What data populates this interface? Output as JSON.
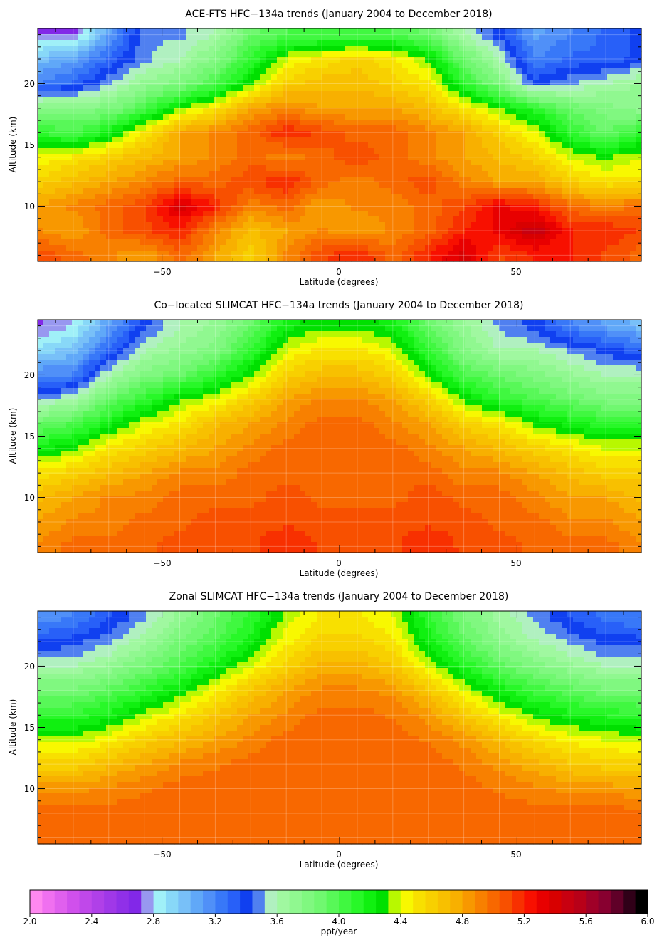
{
  "panels": [
    {
      "title": "ACE-FTS HFC−134a trends (January 2004 to December 2018)",
      "xlabel": "Latitude (degrees)",
      "ylabel": "Altitude (km)",
      "xticks": [
        "−50",
        "0",
        "50"
      ],
      "yticks": [
        "20",
        "15",
        "10"
      ]
    },
    {
      "title": "Co−located SLIMCAT HFC−134a trends (January 2004 to December 2018)",
      "xlabel": "Latitude (degrees)",
      "ylabel": "Altitude (km)",
      "xticks": [
        "−50",
        "0",
        "50"
      ],
      "yticks": [
        "20",
        "15",
        "10"
      ]
    },
    {
      "title": "Zonal SLIMCAT HFC−134a trends (January 2004 to December 2018)",
      "xlabel": "Latitude (degrees)",
      "ylabel": "Altitude (km)",
      "xticks": [
        "−50",
        "0",
        "50"
      ],
      "yticks": [
        "20",
        "15",
        "10"
      ]
    }
  ],
  "colorbar": {
    "label": "ppt/year",
    "ticks": [
      "2.0",
      "2.4",
      "2.8",
      "3.2",
      "3.6",
      "4.0",
      "4.4",
      "4.8",
      "5.2",
      "5.6",
      "6.0"
    ],
    "range": [
      2.0,
      6.0
    ],
    "levels": 50,
    "palette": [
      "#ff88f0",
      "#f070f0",
      "#e060ee",
      "#d050ec",
      "#c048ea",
      "#b040e8",
      "#a038e8",
      "#9030e8",
      "#8228e8",
      "#9898f0",
      "#a0f0f8",
      "#88d8f8",
      "#78c0f8",
      "#60a8f8",
      "#5090f8",
      "#3878f8",
      "#2860f8",
      "#1040f0",
      "#5080f0",
      "#b0f0c0",
      "#a0f8a0",
      "#90f890",
      "#80f880",
      "#70f870",
      "#58f858",
      "#40f840",
      "#28f828",
      "#10f010",
      "#00e000",
      "#b8f800",
      "#f8f800",
      "#f8e000",
      "#f8d000",
      "#f8c000",
      "#f8b000",
      "#f89800",
      "#f88000",
      "#f86800",
      "#f85000",
      "#f83000",
      "#f81000",
      "#e80000",
      "#d80000",
      "#c80010",
      "#b80018",
      "#a00028",
      "#880030",
      "#600028",
      "#300018",
      "#000000"
    ]
  },
  "chart_data": [
    {
      "type": "heatmap",
      "title": "ACE-FTS HFC−134a trends (January 2004 to December 2018)",
      "xlabel": "Latitude (degrees)",
      "ylabel": "Altitude (km)",
      "xlim": [
        -85,
        85
      ],
      "ylim": [
        5.5,
        24.5
      ],
      "zlabel": "ppt/year",
      "zlim": [
        2.0,
        6.0
      ],
      "lat": [
        -85,
        -75,
        -65,
        -55,
        -45,
        -35,
        -25,
        -15,
        -5,
        5,
        15,
        25,
        35,
        45,
        55,
        65,
        75,
        85
      ],
      "alt": [
        6,
        8,
        10,
        12,
        14,
        16,
        18,
        20,
        22,
        24
      ],
      "z": [
        [
          5.1,
          5.0,
          4.9,
          4.8,
          5.0,
          4.8,
          4.6,
          4.9,
          5.1,
          5.2,
          5.0,
          5.2,
          5.4,
          5.1,
          5.2,
          5.2,
          5.1,
          5.0
        ],
        [
          4.9,
          4.8,
          5.0,
          5.1,
          5.2,
          4.9,
          4.7,
          4.8,
          4.9,
          4.8,
          4.9,
          5.0,
          5.2,
          5.3,
          5.5,
          5.2,
          5.2,
          5.1
        ],
        [
          4.8,
          4.9,
          5.0,
          5.1,
          5.4,
          5.2,
          4.9,
          5.0,
          4.8,
          4.9,
          4.9,
          5.0,
          5.1,
          5.3,
          5.2,
          5.0,
          4.9,
          5.0
        ],
        [
          4.6,
          4.7,
          4.8,
          4.9,
          5.0,
          5.0,
          5.1,
          5.2,
          5.0,
          4.9,
          5.0,
          5.1,
          4.9,
          4.8,
          4.8,
          4.6,
          4.5,
          4.5
        ],
        [
          4.4,
          4.5,
          4.6,
          4.7,
          4.8,
          4.9,
          5.0,
          4.9,
          5.0,
          5.1,
          5.0,
          4.9,
          4.8,
          4.7,
          4.6,
          4.4,
          4.3,
          4.4
        ],
        [
          4.1,
          4.0,
          4.2,
          4.5,
          4.8,
          4.9,
          5.0,
          5.2,
          5.1,
          5.0,
          5.0,
          4.9,
          4.8,
          4.6,
          4.4,
          4.1,
          3.9,
          4.1
        ],
        [
          3.8,
          3.8,
          3.8,
          4.0,
          4.3,
          4.5,
          4.8,
          4.9,
          4.8,
          4.8,
          4.8,
          4.7,
          4.5,
          4.3,
          4.1,
          3.9,
          3.8,
          3.7
        ],
        [
          3.2,
          3.3,
          3.5,
          3.7,
          3.8,
          4.0,
          4.3,
          4.6,
          4.7,
          4.7,
          4.6,
          4.5,
          4.1,
          3.8,
          3.4,
          3.5,
          3.6,
          3.7
        ],
        [
          3.0,
          3.1,
          3.3,
          3.5,
          3.6,
          3.8,
          4.1,
          4.4,
          4.5,
          4.6,
          4.5,
          4.3,
          3.9,
          3.6,
          3.2,
          3.3,
          3.3,
          3.4
        ],
        [
          2.7,
          2.7,
          3.1,
          3.5,
          3.5,
          3.6,
          3.9,
          4.0,
          4.0,
          4.0,
          4.0,
          3.9,
          3.6,
          3.4,
          3.1,
          3.2,
          3.3,
          3.4
        ]
      ]
    },
    {
      "type": "heatmap",
      "title": "Co−located SLIMCAT HFC−134a trends (January 2004 to December 2018)",
      "xlabel": "Latitude (degrees)",
      "ylabel": "Altitude (km)",
      "xlim": [
        -85,
        85
      ],
      "ylim": [
        5.5,
        24.5
      ],
      "zlabel": "ppt/year",
      "zlim": [
        2.0,
        6.0
      ],
      "lat": [
        -85,
        -75,
        -65,
        -55,
        -45,
        -35,
        -25,
        -15,
        -5,
        5,
        15,
        25,
        35,
        45,
        55,
        65,
        75,
        85
      ],
      "alt": [
        6,
        8,
        10,
        12,
        14,
        16,
        18,
        20,
        22,
        24
      ],
      "z": [
        [
          4.9,
          5.0,
          5.0,
          5.0,
          5.1,
          5.1,
          5.1,
          5.2,
          5.1,
          5.1,
          5.1,
          5.2,
          5.1,
          5.1,
          5.0,
          5.0,
          5.0,
          4.9
        ],
        [
          4.8,
          4.9,
          4.9,
          5.0,
          5.0,
          5.1,
          5.1,
          5.1,
          5.1,
          5.1,
          5.1,
          5.1,
          5.1,
          5.0,
          5.0,
          4.9,
          4.9,
          4.8
        ],
        [
          4.7,
          4.8,
          4.9,
          4.9,
          5.0,
          5.0,
          5.0,
          5.1,
          5.0,
          5.0,
          5.0,
          5.1,
          5.0,
          5.0,
          4.9,
          4.8,
          4.8,
          4.7
        ],
        [
          4.5,
          4.6,
          4.7,
          4.8,
          4.9,
          4.9,
          5.0,
          5.0,
          5.0,
          5.0,
          5.0,
          5.0,
          4.9,
          4.9,
          4.8,
          4.7,
          4.6,
          4.6
        ],
        [
          4.2,
          4.3,
          4.5,
          4.6,
          4.7,
          4.8,
          4.9,
          5.0,
          5.0,
          5.0,
          5.0,
          4.9,
          4.8,
          4.7,
          4.6,
          4.5,
          4.4,
          4.4
        ],
        [
          3.9,
          4.0,
          4.2,
          4.4,
          4.5,
          4.7,
          4.8,
          4.9,
          5.0,
          5.0,
          4.9,
          4.8,
          4.6,
          4.5,
          4.3,
          4.2,
          4.1,
          4.1
        ],
        [
          3.5,
          3.6,
          3.9,
          4.1,
          4.3,
          4.4,
          4.6,
          4.8,
          4.9,
          4.9,
          4.8,
          4.6,
          4.3,
          4.1,
          4.0,
          3.9,
          3.8,
          3.8
        ],
        [
          3.2,
          3.2,
          3.6,
          3.8,
          3.9,
          4.1,
          4.3,
          4.6,
          4.7,
          4.7,
          4.6,
          4.3,
          4.0,
          3.9,
          3.8,
          3.7,
          3.6,
          3.6
        ],
        [
          2.9,
          3.0,
          3.3,
          3.6,
          3.7,
          3.8,
          4.1,
          4.4,
          4.5,
          4.5,
          4.4,
          4.1,
          3.8,
          3.6,
          3.6,
          3.5,
          3.4,
          3.3
        ],
        [
          2.7,
          2.8,
          3.1,
          3.4,
          3.6,
          3.7,
          3.9,
          4.2,
          4.3,
          4.3,
          4.2,
          3.9,
          3.7,
          3.5,
          3.4,
          3.2,
          3.1,
          3.0
        ]
      ]
    },
    {
      "type": "heatmap",
      "title": "Zonal SLIMCAT HFC−134a trends (January 2004 to December 2018)",
      "xlabel": "Latitude (degrees)",
      "ylabel": "Altitude (km)",
      "xlim": [
        -85,
        85
      ],
      "ylim": [
        5.5,
        24.5
      ],
      "zlabel": "ppt/year",
      "zlim": [
        2.0,
        6.0
      ],
      "lat": [
        -85,
        -75,
        -65,
        -55,
        -45,
        -35,
        -25,
        -15,
        -5,
        5,
        15,
        25,
        35,
        45,
        55,
        65,
        75,
        85
      ],
      "alt": [
        6,
        8,
        10,
        12,
        14,
        16,
        18,
        20,
        22,
        24
      ],
      "z": [
        [
          5.0,
          5.0,
          5.0,
          5.0,
          5.0,
          5.0,
          5.0,
          5.0,
          5.0,
          5.0,
          5.0,
          5.0,
          5.0,
          5.0,
          5.0,
          5.0,
          5.0,
          5.0
        ],
        [
          5.0,
          5.0,
          5.0,
          5.0,
          5.0,
          5.0,
          5.0,
          5.0,
          5.0,
          5.0,
          5.0,
          5.0,
          5.0,
          5.0,
          5.0,
          5.0,
          5.0,
          5.0
        ],
        [
          4.85,
          4.85,
          4.9,
          4.95,
          5.0,
          5.0,
          5.0,
          5.0,
          5.0,
          5.0,
          5.0,
          5.0,
          5.0,
          4.95,
          4.9,
          4.85,
          4.85,
          4.8
        ],
        [
          4.6,
          4.6,
          4.7,
          4.8,
          4.9,
          4.95,
          5.0,
          5.0,
          5.0,
          5.0,
          5.0,
          5.0,
          4.95,
          4.85,
          4.75,
          4.65,
          4.6,
          4.6
        ],
        [
          4.35,
          4.35,
          4.45,
          4.6,
          4.7,
          4.8,
          4.9,
          5.0,
          5.0,
          5.0,
          5.0,
          4.95,
          4.85,
          4.7,
          4.55,
          4.45,
          4.4,
          4.35
        ],
        [
          4.1,
          4.1,
          4.2,
          4.35,
          4.5,
          4.65,
          4.8,
          4.9,
          5.0,
          5.0,
          4.95,
          4.85,
          4.65,
          4.45,
          4.3,
          4.2,
          4.15,
          4.1
        ],
        [
          3.85,
          3.85,
          3.95,
          4.1,
          4.25,
          4.45,
          4.65,
          4.8,
          4.9,
          4.9,
          4.85,
          4.65,
          4.4,
          4.2,
          4.05,
          3.95,
          3.85,
          3.85
        ],
        [
          3.6,
          3.6,
          3.7,
          3.85,
          4.0,
          4.2,
          4.4,
          4.6,
          4.75,
          4.75,
          4.65,
          4.4,
          4.15,
          3.95,
          3.8,
          3.7,
          3.6,
          3.6
        ],
        [
          3.35,
          3.4,
          3.5,
          3.65,
          3.85,
          4.0,
          4.2,
          4.45,
          4.6,
          4.6,
          4.5,
          4.2,
          3.95,
          3.75,
          3.6,
          3.5,
          3.4,
          3.4
        ],
        [
          3.15,
          3.2,
          3.35,
          3.5,
          3.7,
          3.9,
          4.1,
          4.35,
          4.5,
          4.5,
          4.4,
          4.1,
          3.85,
          3.65,
          3.5,
          3.35,
          3.25,
          3.2
        ]
      ]
    }
  ]
}
